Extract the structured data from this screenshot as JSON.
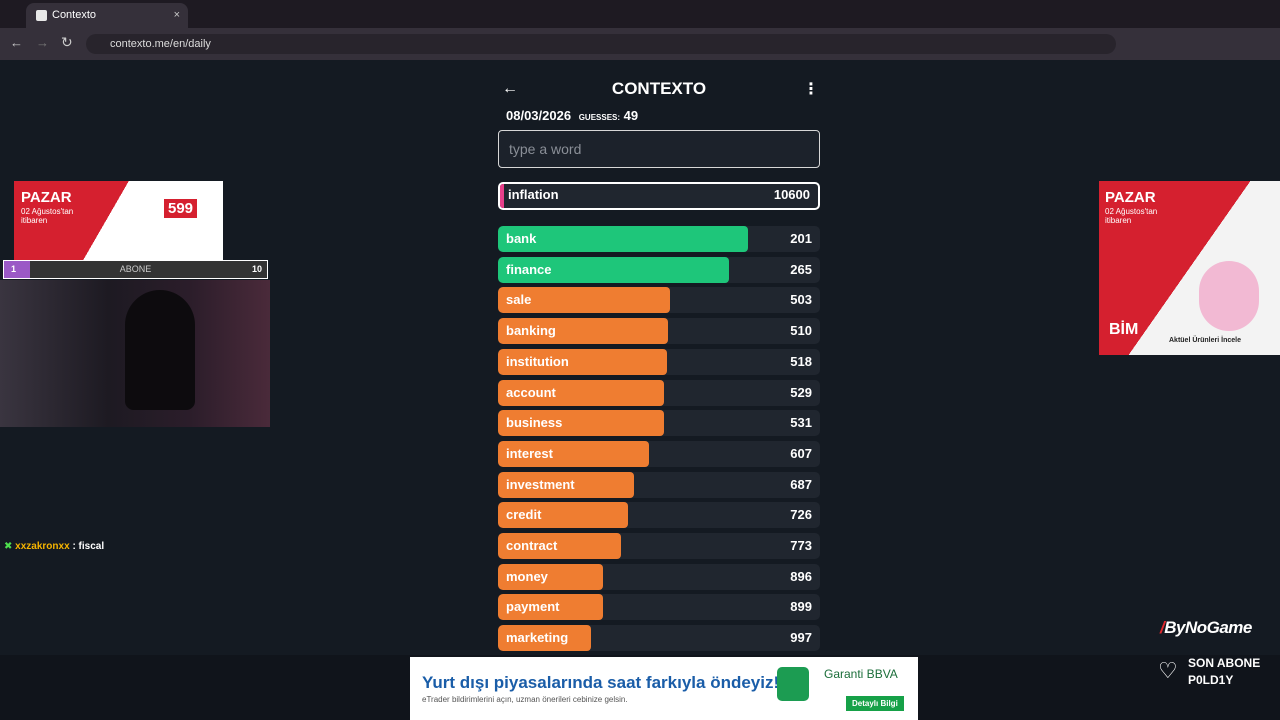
{
  "browser": {
    "tab_title": "Contexto",
    "url": "contexto.me/en/daily"
  },
  "game": {
    "title": "CONTEXTO",
    "date": "08/03/2026",
    "guesses_label": "GUESSES:",
    "guesses_count": 49,
    "input_placeholder": "type a word",
    "last_guess": {
      "word": "inflation",
      "rank": 10600
    },
    "guesses": [
      {
        "word": "bank",
        "rank": 201
      },
      {
        "word": "finance",
        "rank": 265
      },
      {
        "word": "sale",
        "rank": 503
      },
      {
        "word": "banking",
        "rank": 510
      },
      {
        "word": "institution",
        "rank": 518
      },
      {
        "word": "account",
        "rank": 529
      },
      {
        "word": "business",
        "rank": 531
      },
      {
        "word": "interest",
        "rank": 607
      },
      {
        "word": "investment",
        "rank": 687
      },
      {
        "word": "credit",
        "rank": 726
      },
      {
        "word": "contract",
        "rank": 773
      },
      {
        "word": "money",
        "rank": 896
      },
      {
        "word": "payment",
        "rank": 899
      },
      {
        "word": "marketing",
        "rank": 997
      }
    ]
  },
  "overlay": {
    "left_ad": {
      "headline": "PAZAR",
      "subline": "02 Ağustos'tan itibaren",
      "price": "599"
    },
    "right_ad": {
      "headline": "PAZAR",
      "subline": "02 Ağustos'tan itibaren",
      "brand": "BİM",
      "cta": "Aktüel Ürünleri İncele"
    },
    "sub_goal": {
      "current": "1",
      "label": "ABONE",
      "target": "10"
    },
    "chat": {
      "user": "xxzakronxx",
      "message": ": fiscal"
    },
    "channel": "ByNoGame",
    "last_sub_label": "SON ABONE",
    "last_sub_name": "P0LD1Y",
    "bottom_ad": {
      "headline": "Yurt dışı piyasalarında saat farkıyla öndeyiz!",
      "subline": "eTrader bildirimlerini açın, uzman önerileri cebinize gelsin.",
      "brand": "Garanti BBVA",
      "cta": "Detaylı Bilgi"
    }
  }
}
